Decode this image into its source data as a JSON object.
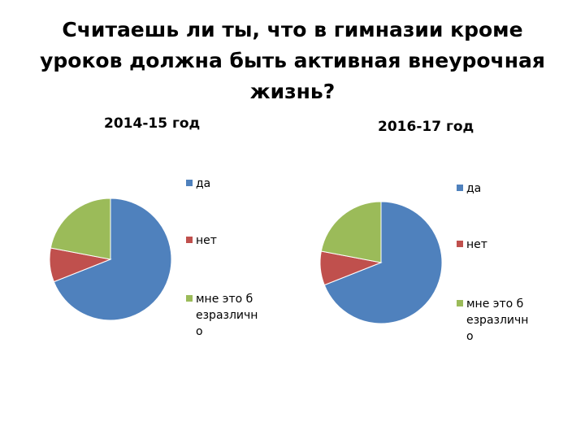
{
  "page_title": "Считаешь ли ты, что  в гимназии кроме уроков должна быть активная внеурочная жизнь?",
  "colors": {
    "yes": "#4f81bd",
    "no": "#c0504d",
    "indifferent": "#9bbb59"
  },
  "chart_data": [
    {
      "type": "pie",
      "title": "2014-15 год",
      "legend_position": "right",
      "slices": [
        {
          "label": "да",
          "value": 69
        },
        {
          "label": "нет",
          "value": 9
        },
        {
          "label": "мне это безразлично",
          "value": 22
        }
      ]
    },
    {
      "type": "pie",
      "title": "2016-17 год",
      "legend_position": "right",
      "slices": [
        {
          "label": "да",
          "value": 69
        },
        {
          "label": "нет",
          "value": 9
        },
        {
          "label": "мне это безразлично",
          "value": 22
        }
      ]
    }
  ]
}
